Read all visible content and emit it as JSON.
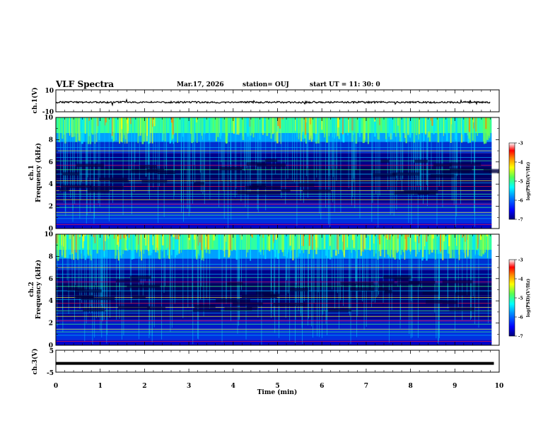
{
  "header": {
    "title": "VLF Spectra",
    "date": "Mar.17, 2026",
    "station": "station= OUJ",
    "start": "start  UT  =   11: 30: 0"
  },
  "chart_data": [
    {
      "type": "line",
      "name": "ch1-waveform",
      "ylabel": "ch.1(V)",
      "ylim": [
        -10,
        10
      ],
      "y_tick_labels": [
        "10",
        "-10"
      ],
      "xlim": [
        0,
        10
      ],
      "trace_level": -1.3
    },
    {
      "type": "heatmap",
      "name": "ch1-spectrogram",
      "ylabel": "ch.1 Frequency (kHz)",
      "xlim": [
        0,
        10
      ],
      "ylim": [
        0,
        10
      ],
      "x_ticks": [
        0,
        1,
        2,
        3,
        4,
        5,
        6,
        7,
        8,
        9,
        10
      ],
      "y_ticks": [
        0,
        2,
        4,
        6,
        8,
        10
      ],
      "data_extent_x": 9.83,
      "colorbar": {
        "label": "log(PSD)(V²/Hz)",
        "range": [
          -7,
          -3
        ],
        "ticks": [
          "-3",
          "-4",
          "-5",
          "-6",
          "-7"
        ]
      }
    },
    {
      "type": "heatmap",
      "name": "ch2-spectrogram",
      "ylabel": "ch.2 Frequency (kHz)",
      "xlim": [
        0,
        10
      ],
      "ylim": [
        0,
        10
      ],
      "x_ticks": [
        0,
        1,
        2,
        3,
        4,
        5,
        6,
        7,
        8,
        9,
        10
      ],
      "y_ticks": [
        0,
        2,
        4,
        6,
        8,
        10
      ],
      "data_extent_x": 9.83,
      "colorbar": {
        "label": "log(PSD)(V²/Hz)",
        "range": [
          -7,
          -3
        ],
        "ticks": [
          "-3",
          "-4",
          "-5",
          "-6",
          "-7"
        ]
      }
    },
    {
      "type": "line",
      "name": "ch3-waveform",
      "ylabel": "ch.3(V)",
      "ylim": [
        -5,
        5
      ],
      "y_tick_labels": [
        "5",
        "-5"
      ],
      "xlim": [
        0,
        10
      ],
      "x_ticks": [
        0,
        1,
        2,
        3,
        4,
        5,
        6,
        7,
        8,
        9,
        10
      ],
      "xlabel": "Time  (min)",
      "trace_level": -1.0
    }
  ],
  "colors": {
    "background": "#ffffff",
    "axes": "#000000",
    "colormap": [
      "#00007a",
      "#0000ff",
      "#0090ff",
      "#00ffff",
      "#55ff55",
      "#ffff00",
      "#ff8800",
      "#ff0000",
      "#ffffff"
    ]
  }
}
